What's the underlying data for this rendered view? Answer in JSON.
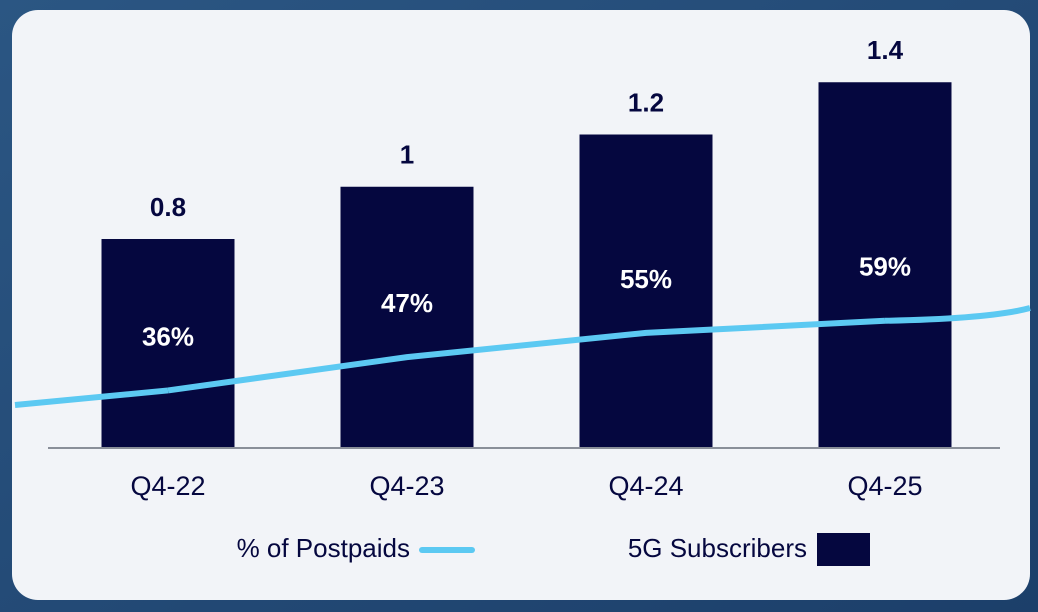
{
  "chart_data": {
    "type": "bar",
    "categories": [
      "Q4-22",
      "Q4-23",
      "Q4-24",
      "Q4-25"
    ],
    "series": [
      {
        "name": "5G Subscribers",
        "color": "#05073f",
        "values": [
          0.8,
          1.0,
          1.2,
          1.4
        ]
      },
      {
        "name": "% of Postpaids",
        "color": "#5cc9f2",
        "axis": "y2",
        "type": "line",
        "values": [
          36,
          47,
          55,
          59
        ],
        "value_labels": [
          "36%",
          "47%",
          "55%",
          "59%"
        ]
      }
    ],
    "ylim": [
      0,
      1.6
    ],
    "y2lim": [
      17,
      155
    ],
    "grid": false,
    "legend": "bottom"
  }
}
